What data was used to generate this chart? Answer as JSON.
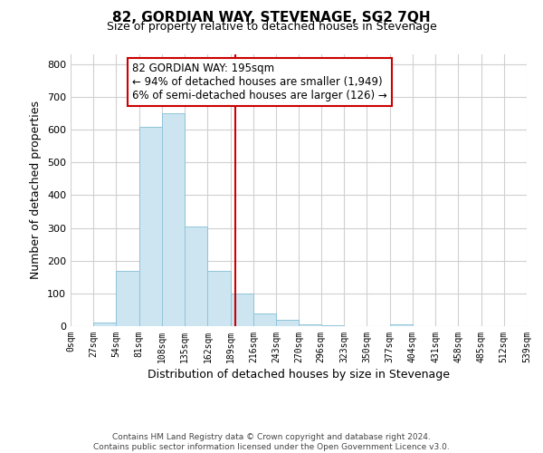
{
  "title": "82, GORDIAN WAY, STEVENAGE, SG2 7QH",
  "subtitle": "Size of property relative to detached houses in Stevenage",
  "xlabel": "Distribution of detached houses by size in Stevenage",
  "ylabel": "Number of detached properties",
  "bar_edges": [
    0,
    27,
    54,
    81,
    108,
    135,
    162,
    189,
    216,
    243,
    270,
    296,
    323,
    350,
    377,
    404,
    431,
    458,
    485,
    512,
    539
  ],
  "bar_heights": [
    0,
    12,
    170,
    610,
    650,
    305,
    170,
    100,
    40,
    20,
    5,
    3,
    0,
    0,
    5,
    0,
    0,
    0,
    0,
    0
  ],
  "bar_color": "#cce5f0",
  "bar_edgecolor": "#90c4da",
  "vline_x": 195,
  "vline_color": "#cc0000",
  "annotation_title": "82 GORDIAN WAY: 195sqm",
  "annotation_line1": "← 94% of detached houses are smaller (1,949)",
  "annotation_line2": "6% of semi-detached houses are larger (126) →",
  "ylim": [
    0,
    830
  ],
  "yticks": [
    0,
    100,
    200,
    300,
    400,
    500,
    600,
    700,
    800
  ],
  "tick_labels": [
    "0sqm",
    "27sqm",
    "54sqm",
    "81sqm",
    "108sqm",
    "135sqm",
    "162sqm",
    "189sqm",
    "216sqm",
    "243sqm",
    "270sqm",
    "296sqm",
    "323sqm",
    "350sqm",
    "377sqm",
    "404sqm",
    "431sqm",
    "458sqm",
    "485sqm",
    "512sqm",
    "539sqm"
  ],
  "footer1": "Contains HM Land Registry data © Crown copyright and database right 2024.",
  "footer2": "Contains public sector information licensed under the Open Government Licence v3.0.",
  "background_color": "#ffffff",
  "grid_color": "#d0d0d0"
}
